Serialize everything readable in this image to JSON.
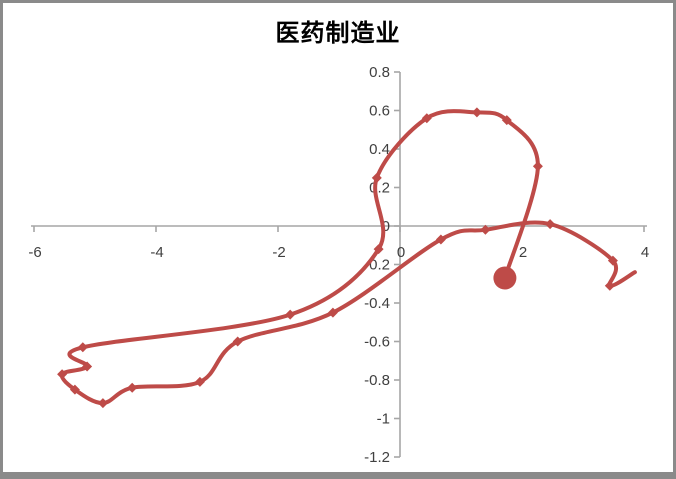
{
  "window": {
    "border_color": "#8A8A8A",
    "background": "#FFFFFF"
  },
  "chart_data": {
    "type": "line",
    "title": "医药制造业",
    "xlabel": "",
    "ylabel": "",
    "xlim": [
      -6,
      4
    ],
    "ylim": [
      -1.2,
      0.8
    ],
    "grid": false,
    "legend": null,
    "axis_color": "#A6A6A6",
    "tick_label_color": "#404040",
    "x_tick_labels": [
      "-6",
      "-4",
      "-2",
      "0",
      "2",
      "4"
    ],
    "y_tick_labels": [
      "0.8",
      "0.6",
      "0.4",
      "0.2",
      "0",
      "-0.2",
      "-0.4",
      "-0.6",
      "-0.8",
      "-1",
      "-1.2"
    ],
    "series": [
      {
        "name": "医药制造业",
        "color": "#BE4B48",
        "smooth": true,
        "marker": "diamond",
        "start_point_marker": false,
        "last_point_marker": "large-circle",
        "points": [
          [
            3.85,
            -0.24
          ],
          [
            3.44,
            -0.31
          ],
          [
            3.49,
            -0.18
          ],
          [
            2.46,
            0.01
          ],
          [
            1.4,
            -0.02
          ],
          [
            0.67,
            -0.07
          ],
          [
            -1.1,
            -0.45
          ],
          [
            -2.66,
            -0.6
          ],
          [
            -3.28,
            -0.81
          ],
          [
            -4.39,
            -0.84
          ],
          [
            -4.87,
            -0.92
          ],
          [
            -5.33,
            -0.85
          ],
          [
            -5.54,
            -0.77
          ],
          [
            -5.13,
            -0.73
          ],
          [
            -5.2,
            -0.63
          ],
          [
            -1.8,
            -0.46
          ],
          [
            -0.35,
            -0.12
          ],
          [
            -0.38,
            0.25
          ],
          [
            0.44,
            0.56
          ],
          [
            1.26,
            0.59
          ],
          [
            1.75,
            0.55
          ],
          [
            2.26,
            0.31
          ],
          [
            1.72,
            -0.27
          ]
        ]
      }
    ]
  }
}
